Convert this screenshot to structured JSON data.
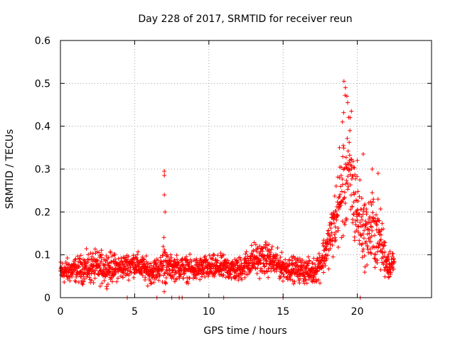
{
  "chart_data": {
    "type": "scatter",
    "title": "Day 228 of 2017, SRMTID for receiver reun",
    "xlabel": "GPS time / hours",
    "ylabel": "SRMTID / TECUs",
    "xlim": [
      0,
      25
    ],
    "ylim": [
      0,
      0.6
    ],
    "xticks": [
      0,
      5,
      10,
      15,
      20
    ],
    "xtick_labels": [
      "0",
      "5",
      "10",
      "15",
      "20"
    ],
    "yticks": [
      0,
      0.1,
      0.2,
      0.3,
      0.4,
      0.5,
      0.6
    ],
    "ytick_labels": [
      "0",
      "0.1",
      "0.2",
      "0.3",
      "0.4",
      "0.5",
      "0.6"
    ],
    "grid": true,
    "marker": "+",
    "color": "#ff0000",
    "series": [
      {
        "name": "SRMTID",
        "profile": {
          "x": [
            0,
            1,
            2,
            3,
            4,
            5,
            6,
            6.8,
            7.0,
            7.2,
            8,
            9,
            10,
            11,
            12,
            13,
            14,
            15,
            16,
            17,
            17.5,
            18,
            18.5,
            19,
            19.2,
            19.5,
            20,
            20.5,
            21,
            21.5,
            22,
            22.5
          ],
          "base": [
            0.06,
            0.065,
            0.07,
            0.07,
            0.07,
            0.08,
            0.06,
            0.07,
            0.09,
            0.07,
            0.07,
            0.065,
            0.07,
            0.07,
            0.065,
            0.09,
            0.09,
            0.07,
            0.065,
            0.06,
            0.08,
            0.12,
            0.18,
            0.25,
            0.3,
            0.28,
            0.2,
            0.15,
            0.16,
            0.14,
            0.08,
            0.08
          ],
          "spread": [
            0.03,
            0.03,
            0.04,
            0.04,
            0.03,
            0.03,
            0.03,
            0.03,
            0.08,
            0.03,
            0.03,
            0.03,
            0.03,
            0.03,
            0.03,
            0.04,
            0.04,
            0.03,
            0.03,
            0.03,
            0.04,
            0.05,
            0.08,
            0.12,
            0.18,
            0.15,
            0.1,
            0.08,
            0.1,
            0.08,
            0.04,
            0.03
          ]
        },
        "peaks": [
          {
            "x": 7.0,
            "y": 0.295
          },
          {
            "x": 7.0,
            "y": 0.285
          },
          {
            "x": 7.0,
            "y": 0.24
          },
          {
            "x": 7.05,
            "y": 0.2
          },
          {
            "x": 19.1,
            "y": 0.505
          },
          {
            "x": 19.2,
            "y": 0.49
          },
          {
            "x": 19.3,
            "y": 0.47
          },
          {
            "x": 19.35,
            "y": 0.455
          },
          {
            "x": 19.6,
            "y": 0.435
          },
          {
            "x": 19.0,
            "y": 0.41
          },
          {
            "x": 18.8,
            "y": 0.35
          },
          {
            "x": 19.5,
            "y": 0.39
          },
          {
            "x": 20.4,
            "y": 0.335
          },
          {
            "x": 21.0,
            "y": 0.3
          },
          {
            "x": 21.4,
            "y": 0.29
          },
          {
            "x": 20.0,
            "y": 0.32
          }
        ],
        "zeros": [
          4.5,
          6.5,
          7.5,
          8.0,
          8.2,
          11.0,
          15.0,
          20.2
        ]
      }
    ]
  }
}
